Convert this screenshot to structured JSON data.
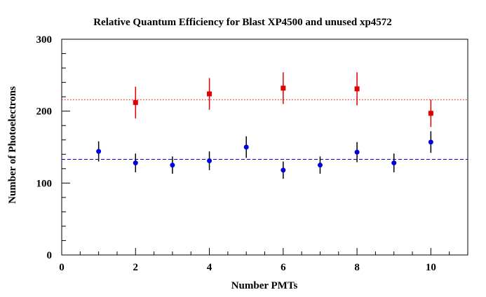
{
  "chart_data": {
    "type": "scatter",
    "title": "Relative Quantum Efficiency for Blast XP4500 and unused xp4572",
    "xlabel": "Number PMTs",
    "ylabel": "Number of Photoelectrons",
    "xlim": [
      0,
      11
    ],
    "ylim": [
      0,
      300
    ],
    "x_ticks": [
      "0",
      "2",
      "4",
      "6",
      "8",
      "10"
    ],
    "y_ticks": [
      "0",
      "100",
      "200",
      "300"
    ],
    "grid": false,
    "colors": {
      "red_series": "#e00000",
      "blue_series": "#0000dd",
      "error_bar": "#000000"
    },
    "series": [
      {
        "marker": "square",
        "color": "#e00000",
        "x": [
          2,
          4,
          6,
          8,
          10
        ],
        "y": [
          212,
          224,
          232,
          231,
          197
        ],
        "err": [
          22,
          22,
          22,
          23,
          19
        ],
        "reference_line": {
          "y": 216,
          "style": "dotted"
        }
      },
      {
        "marker": "circle",
        "color": "#0000dd",
        "x": [
          1,
          2,
          3,
          4,
          5,
          6,
          7,
          8,
          9,
          10
        ],
        "y": [
          144,
          128,
          125,
          131,
          150,
          118,
          125,
          143,
          128,
          157
        ],
        "err": [
          14,
          13,
          12,
          13,
          15,
          12,
          12,
          14,
          13,
          15
        ],
        "reference_line": {
          "y": 133,
          "style": "dashed"
        }
      }
    ]
  }
}
